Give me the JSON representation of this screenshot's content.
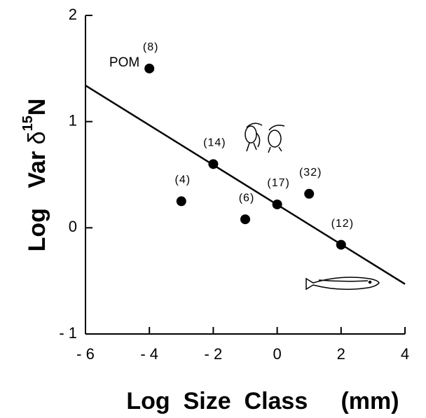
{
  "chart_data": {
    "type": "scatter",
    "x": [
      -4,
      -3,
      -2,
      -1,
      0,
      1,
      2
    ],
    "values": [
      1.5,
      0.25,
      0.6,
      0.08,
      0.22,
      0.32,
      -0.16
    ],
    "point_labels": [
      "(8)",
      "(4)",
      "(14)",
      "(6)",
      "(17)",
      "(32)",
      "(12)"
    ],
    "first_point_name": "POM",
    "color": "#000000",
    "fit_line": {
      "x": [
        -6,
        4
      ],
      "y": [
        1.34,
        -0.53
      ]
    },
    "xlim": [
      -6,
      4
    ],
    "ylim": [
      -1,
      2
    ],
    "xticks": [
      {
        "value": -6,
        "label": "- 6"
      },
      {
        "value": -4,
        "label": "- 4"
      },
      {
        "value": -2,
        "label": "- 2"
      },
      0,
      2,
      4
    ],
    "yticks": [
      {
        "value": -1,
        "label": "- 1"
      },
      0,
      1,
      2
    ],
    "xlabel": "Log  Size  Class     (mm)",
    "ylabel": {
      "main": "Log   Var ",
      "delta": "δ",
      "sup": "15",
      "end": "N"
    }
  }
}
